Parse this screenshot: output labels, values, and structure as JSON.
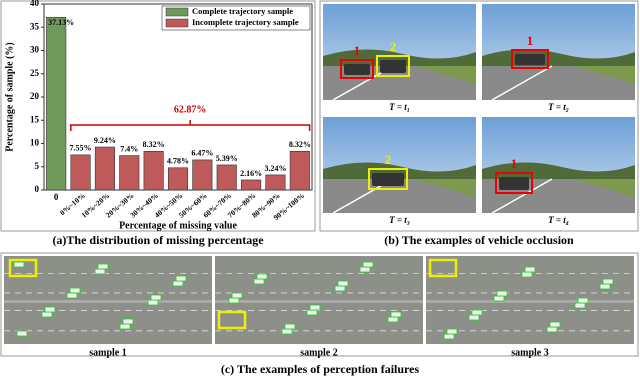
{
  "chart_data": {
    "type": "bar",
    "x_label": "Percentage of missing value",
    "y_label": "Percentage of sample (%)",
    "categories": [
      "0",
      "0%~10%",
      "10%~20%",
      "20%~30%",
      "30%~40%",
      "40%~50%",
      "50%~60%",
      "60%~70%",
      "70%~80%",
      "80%~90%",
      "90%~100%"
    ],
    "series": [
      {
        "name": "Complete trajectory sample",
        "color": "#6f9a5c",
        "values": [
          37.13,
          null,
          null,
          null,
          null,
          null,
          null,
          null,
          null,
          null,
          null
        ],
        "value_labels": [
          "37.13%",
          null,
          null,
          null,
          null,
          null,
          null,
          null,
          null,
          null,
          null
        ]
      },
      {
        "name": "Incomplete trajectory sample",
        "color": "#bf5a5a",
        "values": [
          null,
          7.55,
          9.24,
          7.4,
          8.32,
          4.78,
          6.47,
          5.39,
          2.16,
          3.24,
          8.32
        ],
        "value_labels": [
          null,
          "7.55%",
          "9.24%",
          "7.4%",
          "8.32%",
          "4.78%",
          "6.47%",
          "5.39%",
          "2.16%",
          "3.24%",
          "8.32%"
        ]
      }
    ],
    "annotation": "62.87%",
    "ylim": [
      0,
      40
    ],
    "yticks": [
      0,
      5,
      10,
      15,
      20,
      25,
      30,
      35,
      40
    ],
    "legend": "upper right"
  },
  "captions": {
    "a": "(a)The distribution of missing percentage",
    "b": "(b) The examples of vehicle occlusion",
    "c": "(c) The examples of perception failures"
  },
  "occlusion": [
    {
      "label": "T = t₁",
      "markers": [
        "1",
        "2"
      ]
    },
    {
      "label": "T = t₂",
      "markers": [
        "1"
      ]
    },
    {
      "label": "T = t₃",
      "markers": [
        "2"
      ]
    },
    {
      "label": "T = t₄",
      "markers": [
        "1"
      ]
    }
  ],
  "samples": [
    "sample 1",
    "sample 2",
    "sample 3"
  ]
}
